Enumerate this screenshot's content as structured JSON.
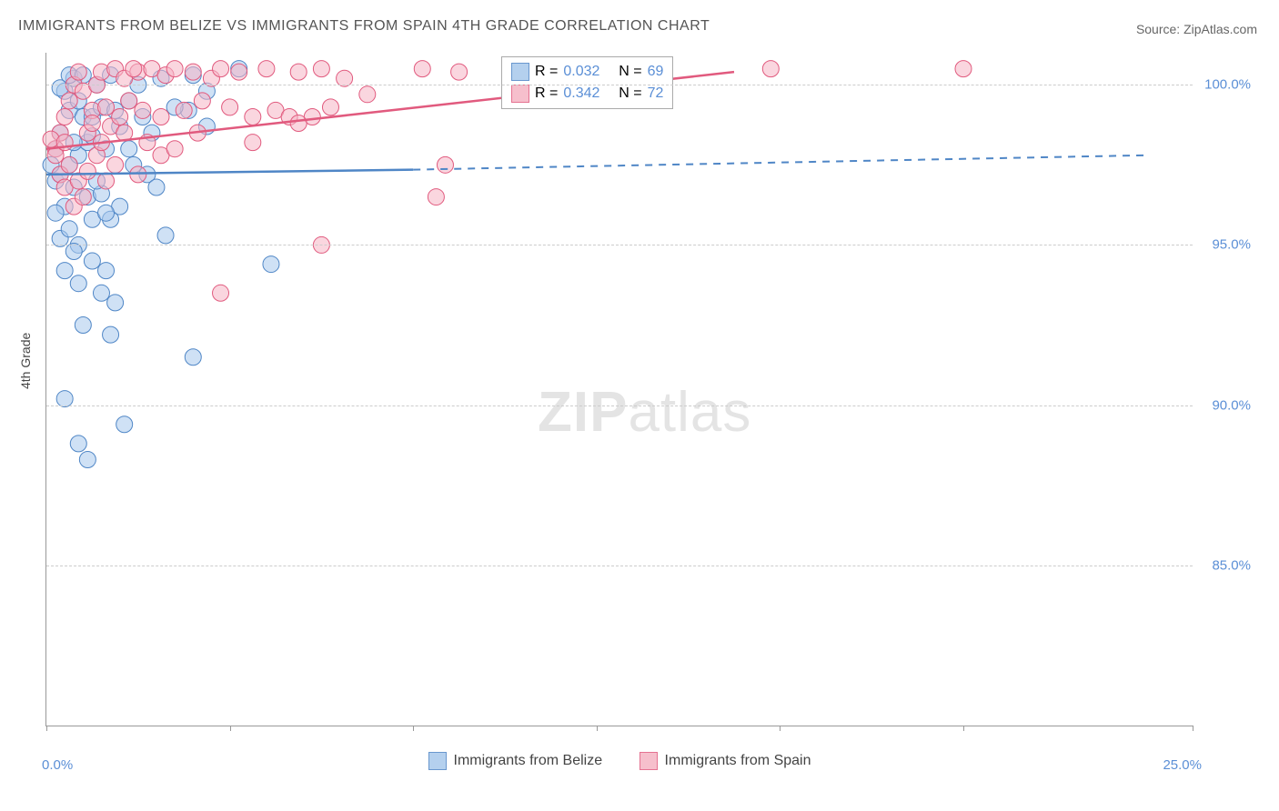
{
  "title": "IMMIGRANTS FROM BELIZE VS IMMIGRANTS FROM SPAIN 4TH GRADE CORRELATION CHART",
  "source_prefix": "Source: ",
  "source_name": "ZipAtlas.com",
  "y_axis_label": "4th Grade",
  "watermark": {
    "bold": "ZIP",
    "rest": "atlas"
  },
  "x_axis": {
    "min": 0.0,
    "max": 25.0,
    "ticks_pct": [
      0,
      4,
      8,
      12,
      16,
      20,
      25
    ],
    "label_left": "0.0%",
    "label_right": "25.0%"
  },
  "y_axis": {
    "min": 80.0,
    "max": 101.0,
    "grid_values": [
      85.0,
      90.0,
      95.0,
      100.0
    ],
    "tick_labels": [
      "85.0%",
      "90.0%",
      "95.0%",
      "100.0%"
    ]
  },
  "series": [
    {
      "id": "belize",
      "name": "Immigrants from Belize",
      "fill": "#a8c8ec",
      "stroke": "#4f86c6",
      "fill_opacity": 0.55,
      "R": "0.032",
      "N": "69",
      "reg": {
        "x0": 0,
        "y0": 97.2,
        "x1_solid": 8,
        "y1_solid": 97.35,
        "x1_dash": 24,
        "y1_dash": 97.8
      },
      "points": [
        [
          0.2,
          97.0
        ],
        [
          0.3,
          98.5
        ],
        [
          0.4,
          99.8
        ],
        [
          0.5,
          99.2
        ],
        [
          0.6,
          100.2
        ],
        [
          0.7,
          99.5
        ],
        [
          0.8,
          99.0
        ],
        [
          0.5,
          97.5
        ],
        [
          0.6,
          96.8
        ],
        [
          0.4,
          96.2
        ],
        [
          0.3,
          97.2
        ],
        [
          0.7,
          97.8
        ],
        [
          0.9,
          98.2
        ],
        [
          1.0,
          99.0
        ],
        [
          1.1,
          100.0
        ],
        [
          1.2,
          99.3
        ],
        [
          1.3,
          98.0
        ],
        [
          1.4,
          100.3
        ],
        [
          1.5,
          99.2
        ],
        [
          1.6,
          98.7
        ],
        [
          1.8,
          99.5
        ],
        [
          2.0,
          100.0
        ],
        [
          2.1,
          99.0
        ],
        [
          2.3,
          98.5
        ],
        [
          2.5,
          100.2
        ],
        [
          0.2,
          96.0
        ],
        [
          0.3,
          95.2
        ],
        [
          0.5,
          95.5
        ],
        [
          0.7,
          95.0
        ],
        [
          0.9,
          96.5
        ],
        [
          1.0,
          95.8
        ],
        [
          1.2,
          96.6
        ],
        [
          1.4,
          95.8
        ],
        [
          1.6,
          96.2
        ],
        [
          0.4,
          94.2
        ],
        [
          0.6,
          94.8
        ],
        [
          1.0,
          94.5
        ],
        [
          1.3,
          94.2
        ],
        [
          2.6,
          95.3
        ],
        [
          0.7,
          93.8
        ],
        [
          1.2,
          93.5
        ],
        [
          1.5,
          93.2
        ],
        [
          0.8,
          92.5
        ],
        [
          1.4,
          92.2
        ],
        [
          4.9,
          94.4
        ],
        [
          0.4,
          90.2
        ],
        [
          1.7,
          89.4
        ],
        [
          0.7,
          88.8
        ],
        [
          0.9,
          88.3
        ],
        [
          3.2,
          91.5
        ],
        [
          4.2,
          100.5
        ],
        [
          3.1,
          99.2
        ],
        [
          3.5,
          99.8
        ],
        [
          2.8,
          99.3
        ],
        [
          3.2,
          100.3
        ],
        [
          2.2,
          97.2
        ],
        [
          1.9,
          97.5
        ],
        [
          0.3,
          99.9
        ],
        [
          0.5,
          100.3
        ],
        [
          0.8,
          100.3
        ],
        [
          1.0,
          98.4
        ],
        [
          1.8,
          98.0
        ],
        [
          2.4,
          96.8
        ],
        [
          3.5,
          98.7
        ],
        [
          1.1,
          97.0
        ],
        [
          1.3,
          96.0
        ],
        [
          0.2,
          98.0
        ],
        [
          0.1,
          97.5
        ],
        [
          0.6,
          98.2
        ]
      ]
    },
    {
      "id": "spain",
      "name": "Immigrants from Spain",
      "fill": "#f5b4c4",
      "stroke": "#e15a7e",
      "fill_opacity": 0.55,
      "R": "0.342",
      "N": "72",
      "reg": {
        "x0": 0,
        "y0": 98.0,
        "x1_solid": 15,
        "y1_solid": 100.4,
        "x1_dash": 15,
        "y1_dash": 100.4
      },
      "points": [
        [
          0.2,
          98.0
        ],
        [
          0.3,
          98.5
        ],
        [
          0.4,
          99.0
        ],
        [
          0.5,
          99.5
        ],
        [
          0.6,
          100.0
        ],
        [
          0.7,
          100.4
        ],
        [
          0.8,
          99.8
        ],
        [
          0.9,
          98.5
        ],
        [
          1.0,
          99.2
        ],
        [
          1.1,
          100.0
        ],
        [
          1.2,
          100.4
        ],
        [
          1.3,
          99.3
        ],
        [
          1.4,
          98.7
        ],
        [
          1.5,
          100.5
        ],
        [
          1.6,
          99.0
        ],
        [
          1.7,
          100.2
        ],
        [
          1.8,
          99.5
        ],
        [
          2.0,
          100.4
        ],
        [
          2.1,
          99.2
        ],
        [
          2.3,
          100.5
        ],
        [
          2.5,
          99.0
        ],
        [
          2.6,
          100.3
        ],
        [
          2.8,
          100.5
        ],
        [
          3.0,
          99.2
        ],
        [
          3.2,
          100.4
        ],
        [
          3.4,
          99.5
        ],
        [
          3.6,
          100.2
        ],
        [
          3.8,
          100.5
        ],
        [
          4.0,
          99.3
        ],
        [
          4.2,
          100.4
        ],
        [
          4.5,
          99.0
        ],
        [
          4.8,
          100.5
        ],
        [
          5.0,
          99.2
        ],
        [
          5.3,
          99.0
        ],
        [
          5.5,
          100.4
        ],
        [
          5.8,
          99.0
        ],
        [
          6.0,
          100.5
        ],
        [
          6.2,
          99.3
        ],
        [
          6.5,
          100.2
        ],
        [
          8.2,
          100.5
        ],
        [
          0.3,
          97.2
        ],
        [
          0.5,
          97.5
        ],
        [
          0.4,
          96.8
        ],
        [
          0.7,
          97.0
        ],
        [
          0.9,
          97.3
        ],
        [
          1.1,
          97.8
        ],
        [
          1.3,
          97.0
        ],
        [
          0.6,
          96.2
        ],
        [
          0.8,
          96.5
        ],
        [
          1.5,
          97.5
        ],
        [
          2.0,
          97.2
        ],
        [
          2.5,
          97.8
        ],
        [
          0.2,
          97.8
        ],
        [
          0.1,
          98.3
        ],
        [
          0.4,
          98.2
        ],
        [
          8.7,
          97.5
        ],
        [
          8.5,
          96.5
        ],
        [
          3.8,
          93.5
        ],
        [
          6.0,
          95.0
        ],
        [
          1.0,
          98.8
        ],
        [
          1.2,
          98.2
        ],
        [
          1.7,
          98.5
        ],
        [
          2.2,
          98.2
        ],
        [
          2.8,
          98.0
        ],
        [
          3.3,
          98.5
        ],
        [
          4.5,
          98.2
        ],
        [
          5.5,
          98.8
        ],
        [
          15.8,
          100.5
        ],
        [
          20.0,
          100.5
        ],
        [
          9.0,
          100.4
        ],
        [
          1.9,
          100.5
        ],
        [
          7.0,
          99.7
        ]
      ]
    }
  ],
  "stat_legend": {
    "R_label": "R =",
    "N_label": "N ="
  },
  "colors": {
    "grid": "#cccccc",
    "axis": "#999999",
    "text": "#555555",
    "value": "#5b8fd6"
  }
}
